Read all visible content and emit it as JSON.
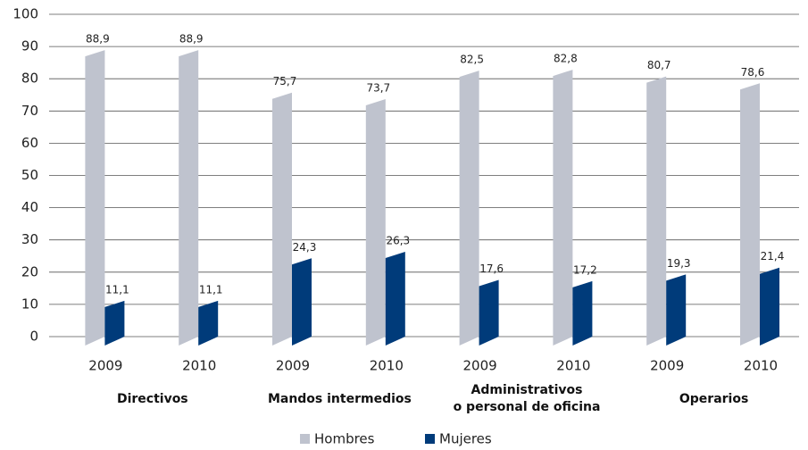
{
  "chart_data": {
    "type": "bar",
    "categories": [
      "2009",
      "2010",
      "2009",
      "2010",
      "2009",
      "2010",
      "2009",
      "2010"
    ],
    "groups": [
      "Directivos",
      "Mandos intermedios",
      "Administrativos\no personal de oficina",
      "Operarios"
    ],
    "series": [
      {
        "name": "Hombres",
        "color": "#bfc3ce",
        "values": [
          88.9,
          88.9,
          75.7,
          73.7,
          82.5,
          82.8,
          80.7,
          78.6
        ],
        "value_labels": [
          "88,9",
          "88,9",
          "75,7",
          "73,7",
          "82,5",
          "82,8",
          "80,7",
          "78,6"
        ]
      },
      {
        "name": "Mujeres",
        "color": "#003b7a",
        "values": [
          11.1,
          11.1,
          24.3,
          26.3,
          17.6,
          17.2,
          19.3,
          21.4
        ],
        "value_labels": [
          "11,1",
          "11,1",
          "24,3",
          "26,3",
          "17,6",
          "17,2",
          "19,3",
          "21,4"
        ]
      }
    ],
    "ylim": [
      0,
      100
    ],
    "yticks": [
      0,
      10,
      20,
      30,
      40,
      50,
      60,
      70,
      80,
      90,
      100
    ],
    "grid": true,
    "legend": "bottom"
  }
}
